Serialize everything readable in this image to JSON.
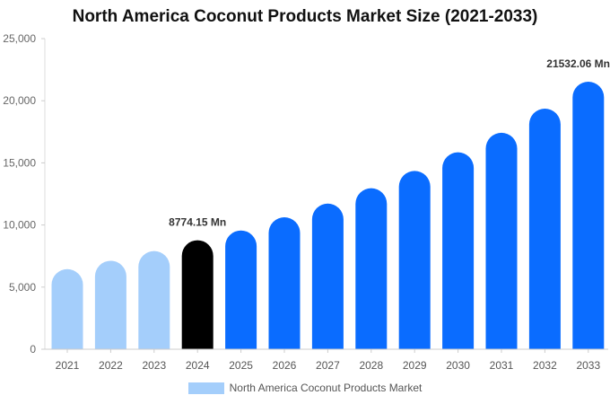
{
  "chart_data": {
    "type": "bar",
    "title": "North America Coconut Products Market Size (2021-2033)",
    "xlabel": "",
    "ylabel": "",
    "categories": [
      "2021",
      "2022",
      "2023",
      "2024",
      "2025",
      "2026",
      "2027",
      "2028",
      "2029",
      "2030",
      "2031",
      "2032",
      "2033"
    ],
    "series": [
      {
        "name": "North America Coconut Products Market",
        "values": [
          6450,
          7120,
          7900,
          8774.15,
          9560,
          10620,
          11720,
          12960,
          14350,
          15850,
          17420,
          19360,
          21532.06
        ]
      }
    ],
    "ylim": [
      0,
      25000
    ],
    "yticks": [
      "0",
      "5,000",
      "10,000",
      "15,000",
      "20,000",
      "25,000"
    ],
    "data_labels": [
      {
        "category": "2024",
        "text": "8774.15 Mn"
      },
      {
        "category": "2033",
        "text": "21532.06 Mn"
      }
    ],
    "colors": {
      "historical": "#a4cefb",
      "base_year": "#000000",
      "forecast": "#0a6cff"
    },
    "grid": false,
    "legend_position": "bottom"
  }
}
